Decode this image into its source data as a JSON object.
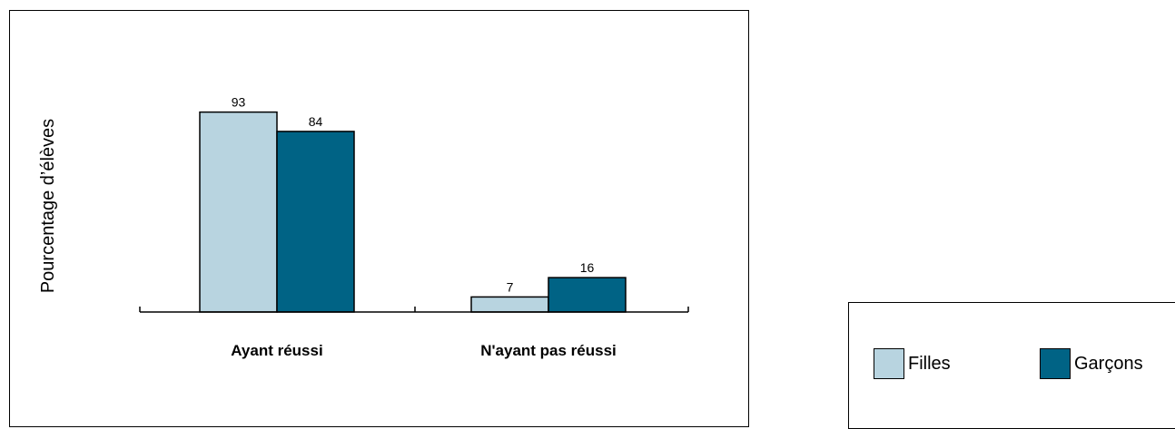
{
  "chart_data": {
    "type": "bar",
    "categories": [
      "Ayant réussi",
      "N'ayant pas réussi"
    ],
    "series": [
      {
        "name": "Filles",
        "values": [
          93,
          7
        ],
        "color": "#b8d4e0"
      },
      {
        "name": "Garçons",
        "values": [
          84,
          16
        ],
        "color": "#006385"
      }
    ],
    "ylabel": "Pourcentage d’élèves",
    "xlabel": "",
    "ylim": [
      0,
      100
    ],
    "data_labels": true,
    "grid": false,
    "legend_position": "bottom-right"
  }
}
